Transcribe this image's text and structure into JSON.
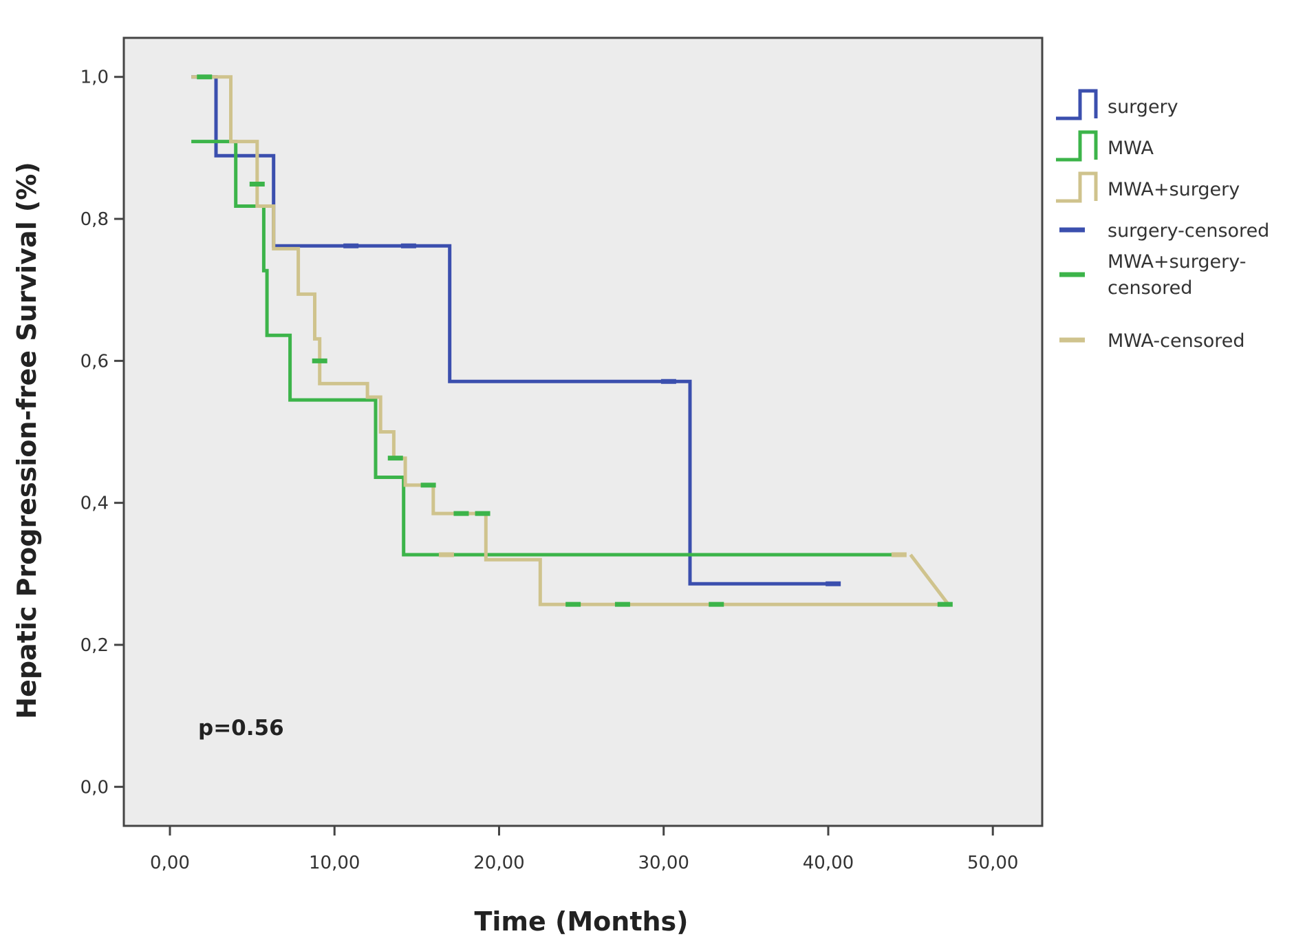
{
  "chart_data": {
    "type": "line",
    "step": true,
    "xlabel": "Time (Months)",
    "ylabel": "Hepatic Progression-free Survival (%)",
    "xlim": [
      -2.8,
      53
    ],
    "ylim": [
      -0.055,
      1.055
    ],
    "x_ticks": [
      0,
      10,
      20,
      30,
      40,
      50
    ],
    "x_tick_labels": [
      "0,00",
      "10,00",
      "20,00",
      "30,00",
      "40,00",
      "50,00"
    ],
    "y_ticks": [
      0,
      0.2,
      0.4,
      0.6,
      0.8,
      1.0
    ],
    "y_tick_labels": [
      "0,0",
      "0,2",
      "0,4",
      "0,6",
      "0,8",
      "1,0"
    ],
    "grid": false,
    "background": "#ececec",
    "legend_position": "right",
    "annotation": "p=0.56",
    "series": [
      {
        "name": "surgery",
        "color": "#3b4fae",
        "points": [
          [
            1.3,
            1.0
          ],
          [
            2.8,
            1.0
          ],
          [
            2.8,
            0.889
          ],
          [
            6.3,
            0.889
          ],
          [
            6.3,
            0.762
          ],
          [
            17.0,
            0.762
          ],
          [
            17.0,
            0.571
          ],
          [
            31.6,
            0.571
          ],
          [
            31.6,
            0.286
          ],
          [
            40.5,
            0.286
          ]
        ],
        "censored": [
          [
            11.0,
            0.762
          ],
          [
            14.5,
            0.762
          ],
          [
            30.3,
            0.571
          ],
          [
            40.3,
            0.286
          ]
        ]
      },
      {
        "name": "MWA",
        "color": "#3cb44a",
        "points": [
          [
            1.3,
            0.909
          ],
          [
            4.0,
            0.909
          ],
          [
            4.0,
            0.818
          ],
          [
            5.7,
            0.818
          ],
          [
            5.7,
            0.727
          ],
          [
            5.9,
            0.727
          ],
          [
            5.9,
            0.636
          ],
          [
            7.3,
            0.636
          ],
          [
            7.3,
            0.545
          ],
          [
            12.5,
            0.545
          ],
          [
            12.5,
            0.436
          ],
          [
            14.2,
            0.436
          ],
          [
            14.2,
            0.327
          ],
          [
            44.3,
            0.327
          ]
        ],
        "censored": []
      },
      {
        "name": "MWA+surgery",
        "color": "#cfc38d",
        "points": [
          [
            1.3,
            1.0
          ],
          [
            3.7,
            1.0
          ],
          [
            3.7,
            0.909
          ],
          [
            5.3,
            0.909
          ],
          [
            5.3,
            0.818
          ],
          [
            6.3,
            0.818
          ],
          [
            6.3,
            0.758
          ],
          [
            7.8,
            0.758
          ],
          [
            7.8,
            0.694
          ],
          [
            8.8,
            0.694
          ],
          [
            8.8,
            0.631
          ],
          [
            9.1,
            0.631
          ],
          [
            9.1,
            0.568
          ],
          [
            12.0,
            0.568
          ],
          [
            12.0,
            0.549
          ],
          [
            12.8,
            0.549
          ],
          [
            12.8,
            0.5
          ],
          [
            13.6,
            0.5
          ],
          [
            13.6,
            0.463
          ],
          [
            14.3,
            0.463
          ],
          [
            14.3,
            0.425
          ],
          [
            16.0,
            0.425
          ],
          [
            16.0,
            0.385
          ],
          [
            19.2,
            0.385
          ],
          [
            19.2,
            0.32
          ],
          [
            22.5,
            0.32
          ],
          [
            22.5,
            0.257
          ],
          [
            47.3,
            0.257
          ],
          [
            45.0,
            0.327
          ]
        ],
        "censored": []
      }
    ],
    "legend": [
      {
        "label": "surgery",
        "kind": "step",
        "color": "#3b4fae"
      },
      {
        "label": "MWA",
        "kind": "step",
        "color": "#3cb44a"
      },
      {
        "label": "MWA+surgery",
        "kind": "step",
        "color": "#cfc38d"
      },
      {
        "label": "surgery-censored",
        "kind": "tick",
        "color": "#3b4fae"
      },
      {
        "label": "MWA+surgery-censored",
        "kind": "tick",
        "color": "#3cb44a",
        "lines": [
          "MWA+surgery-",
          "censored"
        ]
      },
      {
        "label": "MWA-censored",
        "kind": "tick",
        "color": "#cfc38d"
      }
    ],
    "censored_marks": [
      {
        "series": "MWA+surgery",
        "color": "#3cb44a",
        "points": [
          [
            2.1,
            1.0
          ],
          [
            5.3,
            0.849
          ],
          [
            9.1,
            0.6
          ],
          [
            13.7,
            0.463
          ],
          [
            15.7,
            0.425
          ],
          [
            17.7,
            0.385
          ],
          [
            19.0,
            0.385
          ],
          [
            24.5,
            0.257
          ],
          [
            27.5,
            0.257
          ],
          [
            33.2,
            0.257
          ],
          [
            47.1,
            0.257
          ]
        ]
      },
      {
        "series": "MWA",
        "color": "#cfc38d",
        "points": [
          [
            16.8,
            0.327
          ],
          [
            44.3,
            0.327
          ]
        ]
      }
    ]
  }
}
